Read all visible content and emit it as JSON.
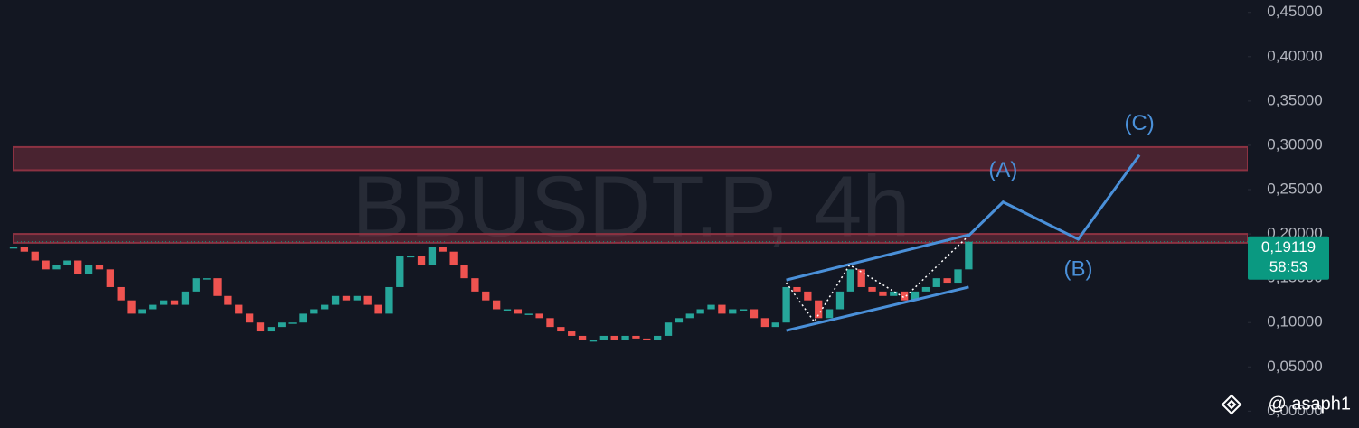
{
  "chart_data": {
    "type": "line",
    "watermark": "BBUSDT.P, 4h",
    "handle": "@ asaph1",
    "xlim": [
      0,
      115
    ],
    "ylim": [
      -0.019,
      0.464
    ],
    "yticks": [
      {
        "value": 0.45,
        "label": "0,45000"
      },
      {
        "value": 0.4,
        "label": "0,40000"
      },
      {
        "value": 0.35,
        "label": "0,35000"
      },
      {
        "value": 0.3,
        "label": "0,30000"
      },
      {
        "value": 0.25,
        "label": "0,25000"
      },
      {
        "value": 0.2,
        "label": "0,20000"
      },
      {
        "value": 0.15,
        "label": "0,15000"
      },
      {
        "value": 0.1,
        "label": "0,10000"
      },
      {
        "value": 0.05,
        "label": "0,05000"
      },
      {
        "value": 0,
        "label": "0,00000"
      }
    ],
    "series": [
      {
        "up_color": "#26a69a",
        "down_color": "#ef5350",
        "values": [
          0.185,
          0.18,
          0.17,
          0.16,
          0.165,
          0.17,
          0.155,
          0.165,
          0.16,
          0.14,
          0.125,
          0.11,
          0.115,
          0.12,
          0.125,
          0.12,
          0.135,
          0.15,
          0.15,
          0.13,
          0.12,
          0.11,
          0.1,
          0.09,
          0.095,
          0.1,
          0.1,
          0.11,
          0.115,
          0.12,
          0.13,
          0.125,
          0.13,
          0.12,
          0.11,
          0.14,
          0.175,
          0.175,
          0.165,
          0.185,
          0.18,
          0.165,
          0.15,
          0.135,
          0.125,
          0.115,
          0.115,
          0.11,
          0.11,
          0.105,
          0.095,
          0.09,
          0.085,
          0.08,
          0.08,
          0.085,
          0.08,
          0.085,
          0.082,
          0.08,
          0.085,
          0.1,
          0.105,
          0.11,
          0.115,
          0.12,
          0.11,
          0.115,
          0.115,
          0.105,
          0.095,
          0.1,
          0.14,
          0.135,
          0.125,
          0.105,
          0.115,
          0.135,
          0.16,
          0.14,
          0.135,
          0.13,
          0.135,
          0.125,
          0.135,
          0.14,
          0.15,
          0.145,
          0.16,
          0.19119
        ]
      }
    ],
    "current_price": {
      "value": 0.19119,
      "label": "0,19119"
    },
    "countdown": "58:53",
    "price_label_color": "#0a9981",
    "zones": [
      {
        "from": 0.272,
        "to": 0.298
      },
      {
        "from": 0.19,
        "to": 0.2
      }
    ],
    "zone_color": "#8c3242",
    "channel": {
      "x": [
        72,
        89
      ],
      "upper": [
        0.148,
        0.199
      ],
      "lower": [
        0.091,
        0.14
      ]
    },
    "zigzag": {
      "x": [
        72,
        74.6,
        77.9,
        83,
        88.9
      ],
      "values": [
        0.145,
        0.101,
        0.165,
        0.128,
        0.197
      ]
    },
    "projection": {
      "x": [
        88.9,
        92.2,
        99.2,
        104.9
      ],
      "values": [
        0.197,
        0.236,
        0.194,
        0.289
      ],
      "labels": [
        null,
        "(A)",
        "(B)",
        "(C)"
      ]
    },
    "drawing_color": "#4a90d9"
  }
}
